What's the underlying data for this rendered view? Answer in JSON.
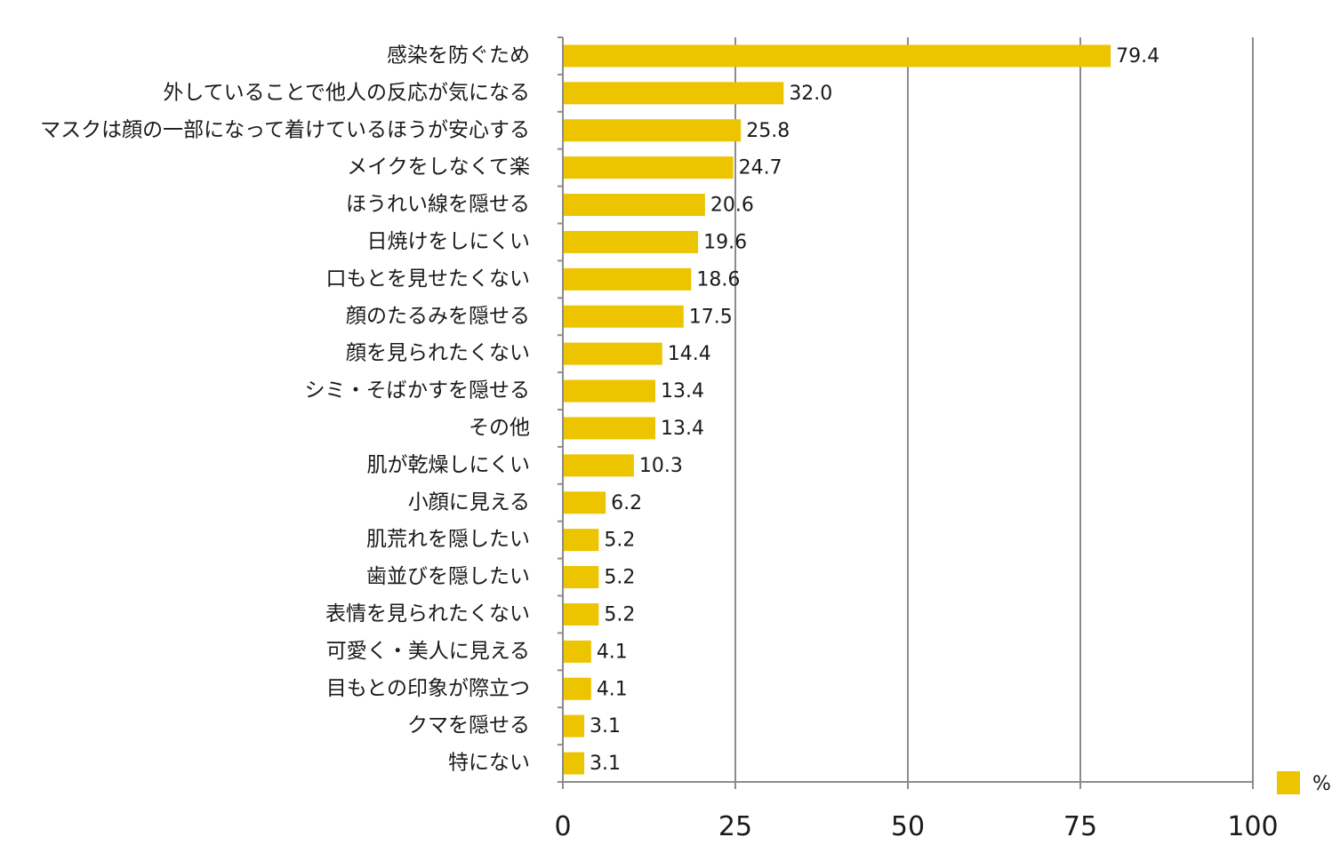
{
  "chart_data": {
    "type": "bar",
    "orientation": "horizontal",
    "categories": [
      "感染を防ぐため",
      "外していることで他人の反応が気になる",
      "マスクは顔の一部になって着けているほうが安心する",
      "メイクをしなくて楽",
      "ほうれい線を隠せる",
      "日焼けをしにくい",
      "口もとを見せたくない",
      "顔のたるみを隠せる",
      "顔を見られたくない",
      "シミ・そばかすを隠せる",
      "その他",
      "肌が乾燥しにくい",
      "小顔に見える",
      "肌荒れを隠したい",
      "歯並びを隠したい",
      "表情を見られたくない",
      "可愛く・美人に見える",
      "目もとの印象が際立つ",
      "クマを隠せる",
      "特にない"
    ],
    "values": [
      79.4,
      32.0,
      25.8,
      24.7,
      20.6,
      19.6,
      18.6,
      17.5,
      14.4,
      13.4,
      13.4,
      10.3,
      6.2,
      5.2,
      5.2,
      5.2,
      4.1,
      4.1,
      3.1,
      3.1
    ],
    "value_labels": [
      "79.4",
      "32.0",
      "25.8",
      "24.7",
      "20.6",
      "19.6",
      "18.6",
      "17.5",
      "14.4",
      "13.4",
      "13.4",
      "10.3",
      "6.2",
      "5.2",
      "5.2",
      "5.2",
      "4.1",
      "4.1",
      "3.1",
      "3.1"
    ],
    "xlim": [
      0,
      100
    ],
    "xticks": [
      0,
      25,
      50,
      75,
      100
    ],
    "xtick_labels": [
      "0",
      "25",
      "50",
      "75",
      "100"
    ],
    "legend": {
      "label": "%",
      "position": "bottom-right"
    },
    "grid": true,
    "colors": {
      "bar": "#EDC400",
      "grid": "#8c8c8c",
      "axis": "#8c8c8c"
    }
  }
}
